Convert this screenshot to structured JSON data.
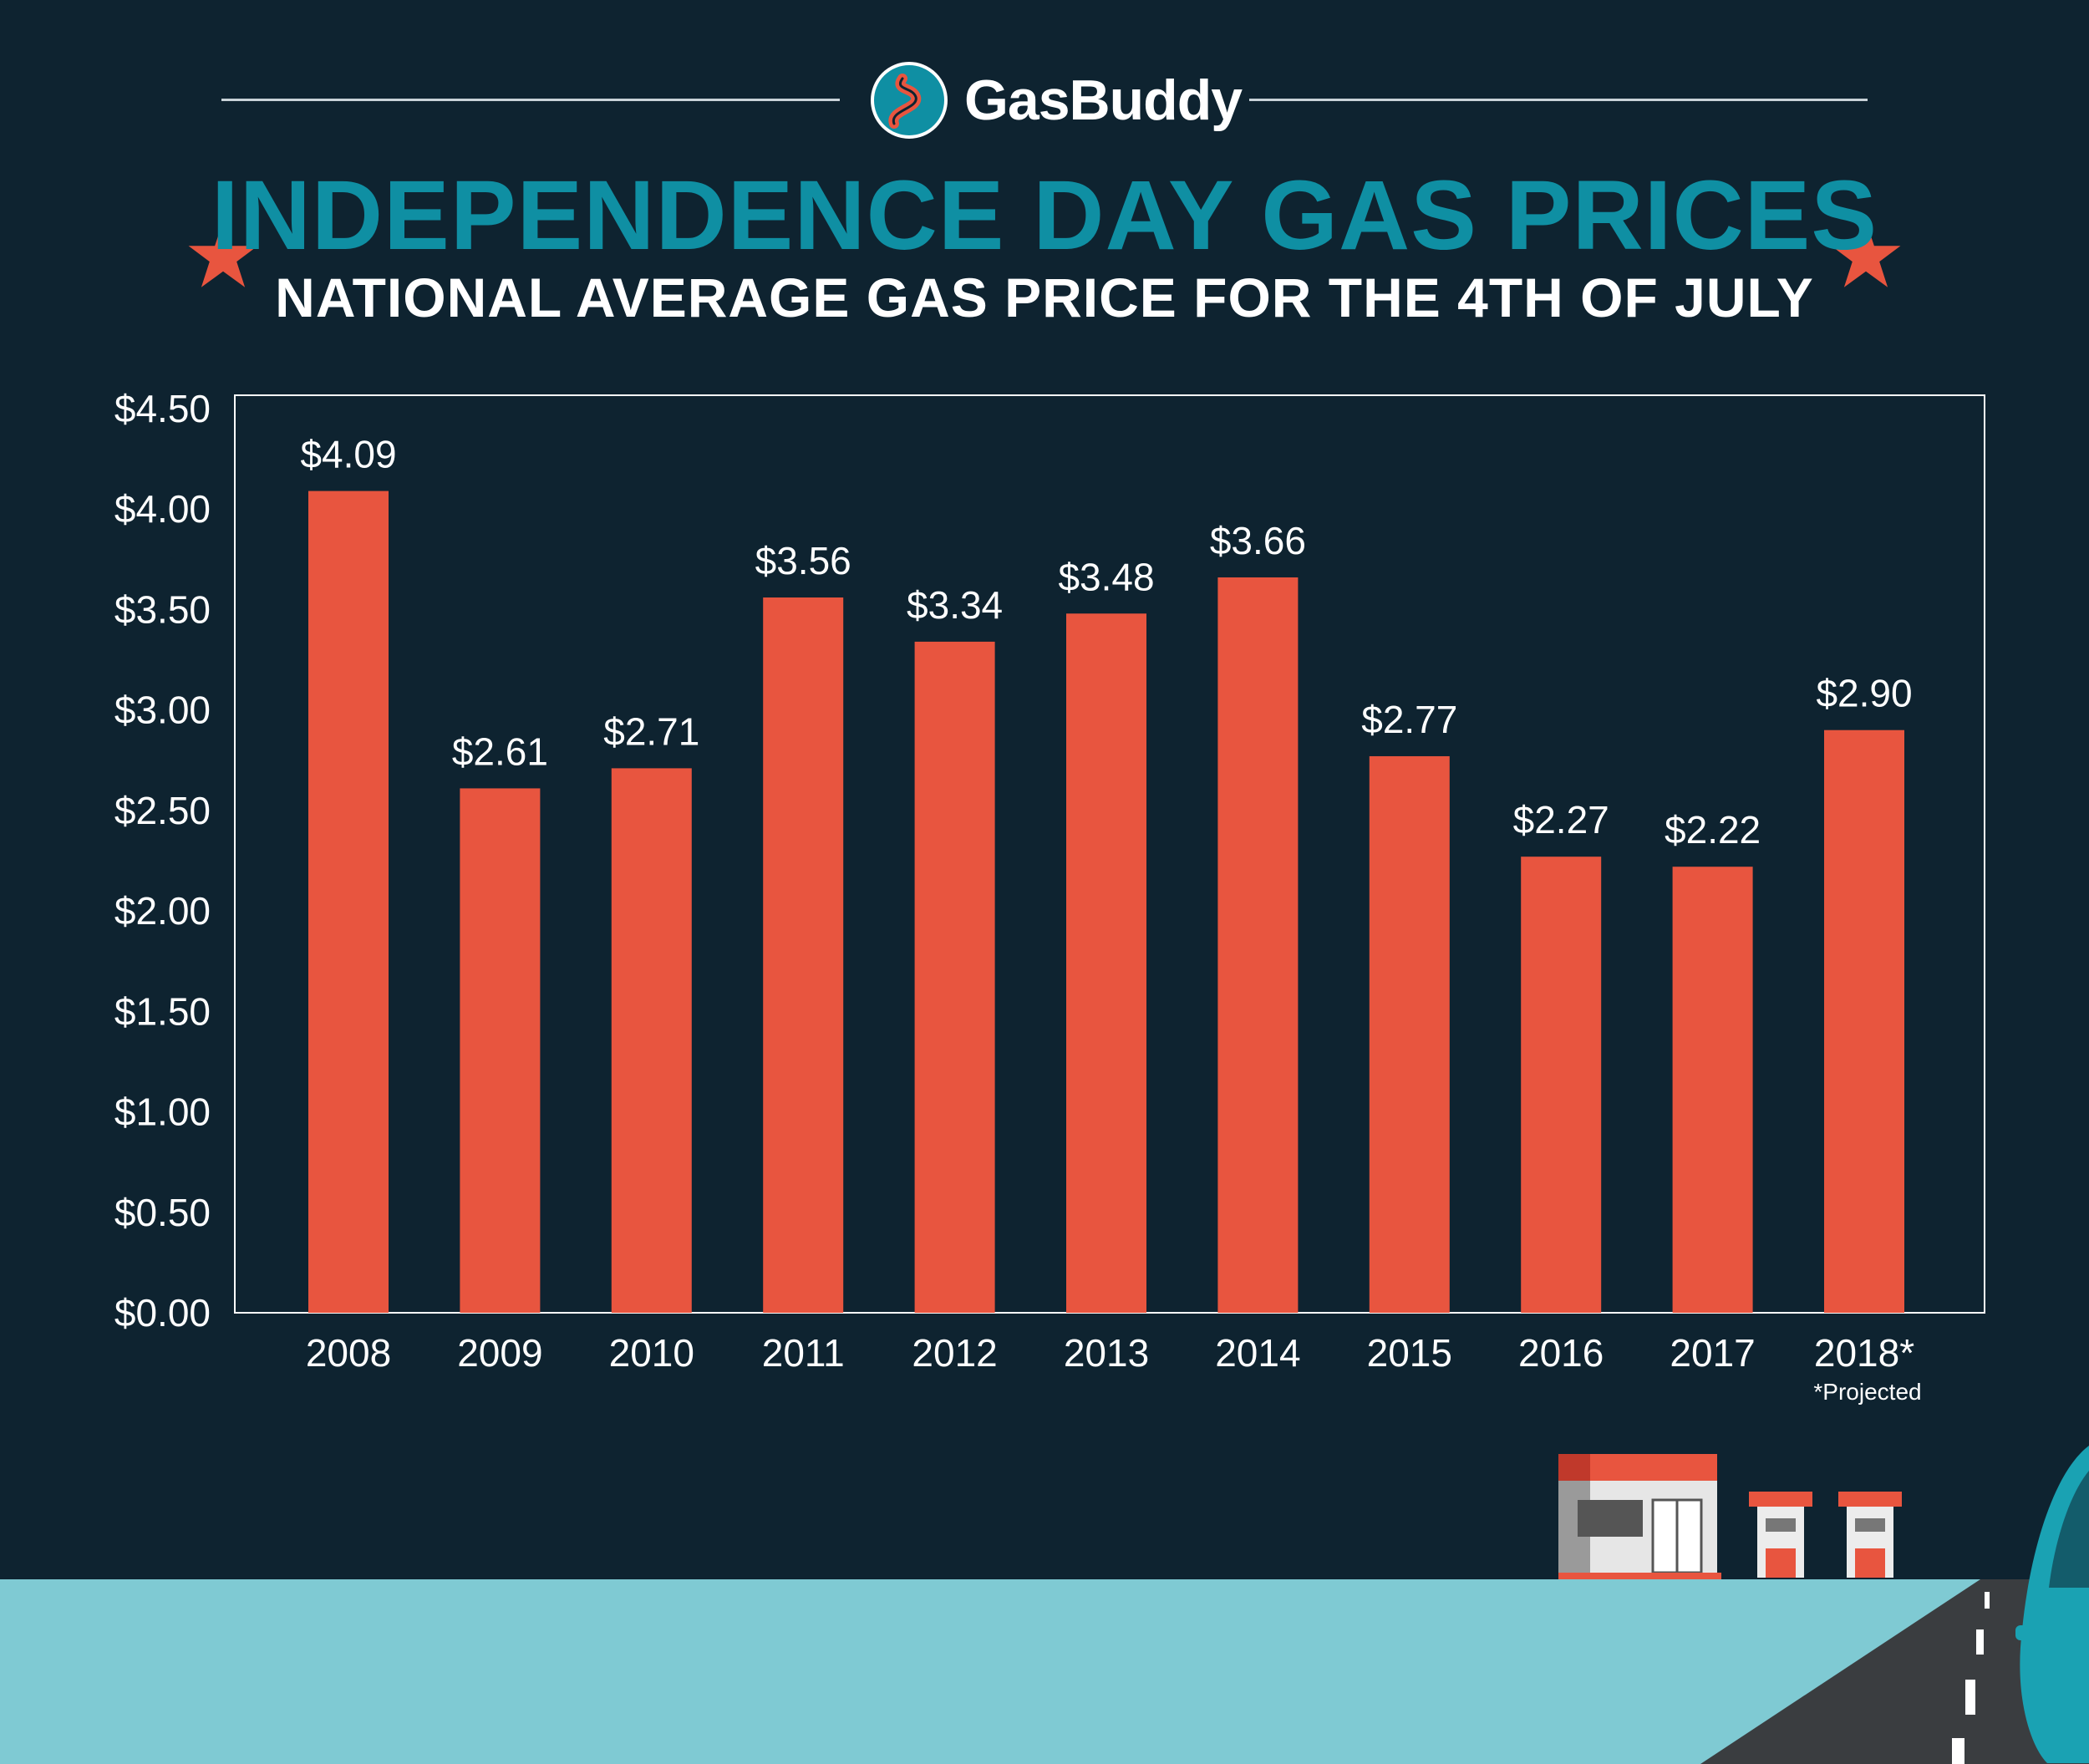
{
  "brand": {
    "name": "GasBuddy",
    "logo_icon": "road-swirl-icon"
  },
  "header": {
    "title": "INDEPENDENCE DAY GAS PRICES",
    "subtitle": "NATIONAL AVERAGE GAS PRICE FOR THE 4TH OF JULY"
  },
  "colors": {
    "background": "#0e2330",
    "bar": "#e8553f",
    "title": "#0f8fa3",
    "text": "#ffffff",
    "star": "#e8553f",
    "road_bg": "#7fcad3",
    "road": "#3a3d40"
  },
  "footnote": "*Projected",
  "chart_data": {
    "type": "bar",
    "title": "INDEPENDENCE DAY GAS PRICES",
    "subtitle": "NATIONAL AVERAGE GAS PRICE FOR THE 4TH OF JULY",
    "categories": [
      "2008",
      "2009",
      "2010",
      "2011",
      "2012",
      "2013",
      "2014",
      "2015",
      "2016",
      "2017",
      "2018*"
    ],
    "values": [
      4.09,
      2.61,
      2.71,
      3.56,
      3.34,
      3.48,
      3.66,
      2.77,
      2.27,
      2.22,
      2.9
    ],
    "data_labels": [
      "$4.09",
      "$2.61",
      "$2.71",
      "$3.56",
      "$3.34",
      "$3.48",
      "$3.66",
      "$2.77",
      "$2.27",
      "$2.22",
      "$2.90"
    ],
    "yticks": [
      "$0.00",
      "$0.50",
      "$1.00",
      "$1.50",
      "$2.00",
      "$2.50",
      "$3.00",
      "$3.50",
      "$4.00",
      "$4.50"
    ],
    "ytick_values": [
      0,
      0.5,
      1,
      1.5,
      2,
      2.5,
      3,
      3.5,
      4,
      4.5
    ],
    "ylim": [
      0,
      4.5
    ],
    "grid": false,
    "legend": "none",
    "xlabel": "",
    "ylabel": ""
  }
}
